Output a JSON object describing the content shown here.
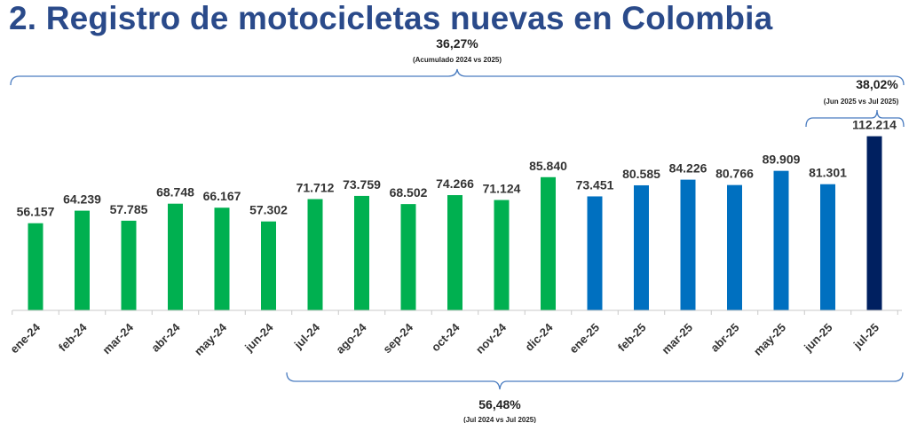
{
  "chart_data": {
    "type": "bar",
    "title": "2. Registro de motocicletas nuevas en Colombia",
    "xlabel": "",
    "ylabel": "",
    "ylim": [
      0,
      200000
    ],
    "grid": false,
    "categories": [
      "ene-24",
      "feb-24",
      "mar-24",
      "abr-24",
      "may-24",
      "jun-24",
      "jul-24",
      "ago-24",
      "sep-24",
      "oct-24",
      "nov-24",
      "dic-24",
      "ene-25",
      "feb-25",
      "mar-25",
      "abr-25",
      "may-25",
      "jun-25",
      "jul-25"
    ],
    "values": [
      56157,
      64239,
      57785,
      68748,
      66167,
      57302,
      71712,
      73759,
      68502,
      74266,
      71124,
      85840,
      73451,
      80585,
      84226,
      80766,
      89909,
      81301,
      112214
    ],
    "data_labels": [
      "56.157",
      "64.239",
      "57.785",
      "68.748",
      "66.167",
      "57.302",
      "71.712",
      "73.759",
      "68.502",
      "74.266",
      "71.124",
      "85.840",
      "73.451",
      "80.585",
      "84.226",
      "80.766",
      "89.909",
      "81.301",
      "112.214"
    ],
    "bar_colors": [
      "#00b050",
      "#00b050",
      "#00b050",
      "#00b050",
      "#00b050",
      "#00b050",
      "#00b050",
      "#00b050",
      "#00b050",
      "#00b050",
      "#00b050",
      "#00b050",
      "#0070c0",
      "#0070c0",
      "#0070c0",
      "#0070c0",
      "#0070c0",
      "#0070c0",
      "#002060"
    ],
    "annotations": [
      {
        "value": "36,27%",
        "note": "(Acumulado 2024 vs 2025)",
        "from": "ene-24",
        "to": "jul-25"
      },
      {
        "value": "38,02%",
        "note": "(Jun 2025 vs Jul 2025)",
        "from": "jun-25",
        "to": "jul-25"
      },
      {
        "value": "56,48%",
        "note": "(Jul 2024 vs Jul 2025)",
        "from": "jul-24",
        "to": "jul-25"
      }
    ]
  }
}
